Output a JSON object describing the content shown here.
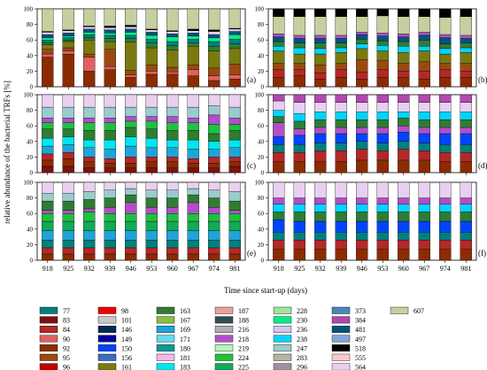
{
  "figure": {
    "ylabel": "relative abundance of the bacterial TRFs [%]",
    "xlabel": "Time since start-up (days)"
  },
  "legend": {
    "items": [
      {
        "label": "77",
        "color": "#007f7f"
      },
      {
        "label": "83",
        "color": "#7f1010"
      },
      {
        "label": "84",
        "color": "#b42828"
      },
      {
        "label": "90",
        "color": "#e06060"
      },
      {
        "label": "92",
        "color": "#8b2c00"
      },
      {
        "label": "95",
        "color": "#9a4a10"
      },
      {
        "label": "96",
        "color": "#c00000"
      },
      {
        "label": "98",
        "color": "#f00000"
      },
      {
        "label": "101",
        "color": "#c8c8c8"
      },
      {
        "label": "146",
        "color": "#002a55"
      },
      {
        "label": "149",
        "color": "#0000a0"
      },
      {
        "label": "150",
        "color": "#0044ff"
      },
      {
        "label": "156",
        "color": "#3e6cc4"
      },
      {
        "label": "161",
        "color": "#7a7a10"
      },
      {
        "label": "163",
        "color": "#2e7d32"
      },
      {
        "label": "167",
        "color": "#8bbf3f"
      },
      {
        "label": "169",
        "color": "#1fa4d8"
      },
      {
        "label": "171",
        "color": "#66d9f0"
      },
      {
        "label": "180",
        "color": "#0a9a96"
      },
      {
        "label": "181",
        "color": "#f0b8f0"
      },
      {
        "label": "183",
        "color": "#00e5ee"
      },
      {
        "label": "187",
        "color": "#e8a0a0"
      },
      {
        "label": "188",
        "color": "#2f4f4f"
      },
      {
        "label": "216",
        "color": "#b0b0b0"
      },
      {
        "label": "218",
        "color": "#b04fc8"
      },
      {
        "label": "219",
        "color": "#b8f5c0"
      },
      {
        "label": "224",
        "color": "#20c040"
      },
      {
        "label": "225",
        "color": "#11aa55"
      },
      {
        "label": "228",
        "color": "#9fe49f"
      },
      {
        "label": "230",
        "color": "#00ee88"
      },
      {
        "label": "236",
        "color": "#d0c8ee"
      },
      {
        "label": "238",
        "color": "#00d5ff"
      },
      {
        "label": "247",
        "color": "#99cccc"
      },
      {
        "label": "283",
        "color": "#b5b5a0"
      },
      {
        "label": "296",
        "color": "#a090a0"
      },
      {
        "label": "373",
        "color": "#4a88b8"
      },
      {
        "label": "384",
        "color": "#b048b0"
      },
      {
        "label": "481",
        "color": "#005580"
      },
      {
        "label": "497",
        "color": "#7fa6d8"
      },
      {
        "label": "518",
        "color": "#000000"
      },
      {
        "label": "555",
        "color": "#ffc8c8"
      },
      {
        "label": "564",
        "color": "#e8d0f0"
      },
      {
        "label": "607",
        "color": "#c5cf9f"
      }
    ]
  },
  "chart_data": [
    {
      "type": "bar",
      "stacked": true,
      "panel_label": "(a)",
      "categories": [
        "918",
        "925",
        "932",
        "939",
        "946",
        "953",
        "960",
        "967",
        "974",
        "981"
      ],
      "y_ticks": [
        "0",
        "20",
        "40",
        "60",
        "80",
        "100"
      ],
      "ylim": [
        0,
        100
      ],
      "series": [
        {
          "name": "92",
          "values": [
            38,
            42,
            20,
            22,
            12,
            16,
            16,
            14,
            8,
            10
          ]
        },
        {
          "name": "90",
          "values": [
            4,
            4,
            18,
            4,
            3,
            4,
            3,
            8,
            6,
            5
          ]
        },
        {
          "name": "95",
          "values": [
            6,
            4,
            4,
            22,
            6,
            8,
            6,
            6,
            10,
            14
          ]
        },
        {
          "name": "161",
          "values": [
            6,
            8,
            18,
            10,
            36,
            22,
            22,
            24,
            22,
            20
          ]
        },
        {
          "name": "163",
          "values": [
            2,
            2,
            3,
            4,
            5,
            6,
            6,
            4,
            6,
            6
          ]
        },
        {
          "name": "77",
          "values": [
            4,
            3,
            4,
            4,
            4,
            5,
            5,
            5,
            6,
            6
          ]
        },
        {
          "name": "230",
          "values": [
            3,
            2,
            3,
            3,
            4,
            5,
            6,
            4,
            5,
            6
          ]
        },
        {
          "name": "481",
          "values": [
            4,
            4,
            4,
            4,
            4,
            4,
            4,
            4,
            4,
            4
          ]
        },
        {
          "name": "564",
          "values": [
            3,
            3,
            3,
            3,
            3,
            3,
            3,
            3,
            4,
            3
          ]
        },
        {
          "name": "518",
          "values": [
            1,
            1,
            1,
            2,
            2,
            1,
            1,
            2,
            2,
            1
          ]
        },
        {
          "name": "607",
          "values": [
            29,
            27,
            22,
            22,
            21,
            26,
            28,
            26,
            27,
            25
          ]
        }
      ]
    },
    {
      "type": "bar",
      "stacked": true,
      "panel_label": "(b)",
      "categories": [
        "918",
        "925",
        "932",
        "939",
        "946",
        "953",
        "960",
        "967",
        "974",
        "981"
      ],
      "y_ticks": [
        "0",
        "20",
        "40",
        "60",
        "80",
        "100"
      ],
      "ylim": [
        0,
        100
      ],
      "series": [
        {
          "name": "92",
          "values": [
            12,
            14,
            10,
            12,
            10,
            12,
            12,
            10,
            12,
            12
          ]
        },
        {
          "name": "84",
          "values": [
            10,
            8,
            8,
            10,
            9,
            10,
            8,
            10,
            10,
            8
          ]
        },
        {
          "name": "95",
          "values": [
            8,
            8,
            10,
            8,
            16,
            12,
            10,
            12,
            8,
            10
          ]
        },
        {
          "name": "161",
          "values": [
            16,
            12,
            14,
            14,
            14,
            12,
            14,
            14,
            12,
            14
          ]
        },
        {
          "name": "238",
          "values": [
            6,
            8,
            7,
            6,
            6,
            7,
            8,
            6,
            7,
            6
          ]
        },
        {
          "name": "163",
          "values": [
            6,
            6,
            7,
            6,
            6,
            6,
            6,
            8,
            6,
            6
          ]
        },
        {
          "name": "481",
          "values": [
            6,
            6,
            6,
            6,
            6,
            6,
            6,
            6,
            8,
            6
          ]
        },
        {
          "name": "218",
          "values": [
            4,
            4,
            4,
            4,
            3,
            4,
            4,
            4,
            4,
            4
          ]
        },
        {
          "name": "607",
          "values": [
            22,
            24,
            24,
            24,
            20,
            22,
            22,
            20,
            22,
            24
          ]
        },
        {
          "name": "518",
          "values": [
            10,
            10,
            10,
            10,
            10,
            9,
            10,
            10,
            11,
            10
          ]
        }
      ]
    },
    {
      "type": "bar",
      "stacked": true,
      "panel_label": "(c)",
      "categories": [
        "918",
        "925",
        "932",
        "939",
        "946",
        "953",
        "960",
        "967",
        "974",
        "981"
      ],
      "y_ticks": [
        "0",
        "20",
        "40",
        "60",
        "80",
        "100"
      ],
      "ylim": [
        0,
        100
      ],
      "series": [
        {
          "name": "83",
          "values": [
            8,
            8,
            6,
            6,
            6,
            6,
            6,
            6,
            6,
            8
          ]
        },
        {
          "name": "92",
          "values": [
            8,
            10,
            8,
            6,
            6,
            8,
            8,
            6,
            6,
            6
          ]
        },
        {
          "name": "84",
          "values": [
            8,
            8,
            6,
            6,
            8,
            6,
            6,
            6,
            8,
            6
          ]
        },
        {
          "name": "169",
          "values": [
            10,
            10,
            12,
            12,
            14,
            12,
            12,
            12,
            10,
            12
          ]
        },
        {
          "name": "183",
          "values": [
            10,
            10,
            10,
            12,
            12,
            12,
            10,
            12,
            10,
            10
          ]
        },
        {
          "name": "163",
          "values": [
            12,
            10,
            12,
            12,
            12,
            12,
            12,
            12,
            10,
            12
          ]
        },
        {
          "name": "224",
          "values": [
            8,
            8,
            10,
            10,
            8,
            10,
            10,
            10,
            12,
            8
          ]
        },
        {
          "name": "218",
          "values": [
            6,
            6,
            6,
            6,
            6,
            6,
            8,
            6,
            12,
            8
          ]
        },
        {
          "name": "247",
          "values": [
            14,
            14,
            14,
            14,
            12,
            12,
            12,
            14,
            12,
            14
          ]
        },
        {
          "name": "564",
          "values": [
            16,
            16,
            16,
            16,
            16,
            16,
            16,
            16,
            14,
            16
          ]
        }
      ]
    },
    {
      "type": "bar",
      "stacked": true,
      "panel_label": "(d)",
      "categories": [
        "918",
        "925",
        "932",
        "939",
        "946",
        "953",
        "960",
        "967",
        "974",
        "981"
      ],
      "y_ticks": [
        "0",
        "20",
        "40",
        "60",
        "80",
        "100"
      ],
      "ylim": [
        0,
        100
      ],
      "series": [
        {
          "name": "92",
          "values": [
            14,
            14,
            14,
            14,
            16,
            16,
            16,
            16,
            14,
            14
          ]
        },
        {
          "name": "84",
          "values": [
            12,
            12,
            14,
            14,
            14,
            12,
            14,
            12,
            12,
            12
          ]
        },
        {
          "name": "77",
          "values": [
            10,
            10,
            10,
            10,
            10,
            10,
            10,
            10,
            10,
            10
          ]
        },
        {
          "name": "150",
          "values": [
            10,
            12,
            12,
            12,
            10,
            12,
            12,
            12,
            14,
            14
          ]
        },
        {
          "name": "218",
          "values": [
            18,
            8,
            8,
            8,
            8,
            8,
            8,
            8,
            8,
            8
          ]
        },
        {
          "name": "163",
          "values": [
            8,
            10,
            10,
            10,
            10,
            10,
            10,
            10,
            10,
            10
          ]
        },
        {
          "name": "238",
          "values": [
            8,
            10,
            10,
            10,
            10,
            10,
            8,
            10,
            10,
            10
          ]
        },
        {
          "name": "564",
          "values": [
            12,
            14,
            12,
            12,
            12,
            12,
            12,
            12,
            12,
            12
          ]
        },
        {
          "name": "384",
          "values": [
            8,
            10,
            10,
            10,
            10,
            10,
            10,
            10,
            10,
            10
          ]
        }
      ]
    },
    {
      "type": "bar",
      "stacked": true,
      "panel_label": "(e)",
      "categories": [
        "918",
        "925",
        "932",
        "939",
        "946",
        "953",
        "960",
        "967",
        "974",
        "981"
      ],
      "y_ticks": [
        "0",
        "20",
        "40",
        "60",
        "80",
        "100"
      ],
      "ylim": [
        0,
        100
      ],
      "series": [
        {
          "name": "92",
          "values": [
            8,
            8,
            8,
            8,
            8,
            8,
            8,
            8,
            8,
            8
          ]
        },
        {
          "name": "84",
          "values": [
            8,
            8,
            8,
            8,
            8,
            8,
            8,
            8,
            8,
            8
          ]
        },
        {
          "name": "77",
          "values": [
            10,
            10,
            10,
            10,
            10,
            10,
            10,
            10,
            10,
            10
          ]
        },
        {
          "name": "169",
          "values": [
            12,
            12,
            12,
            12,
            12,
            12,
            12,
            12,
            12,
            12
          ]
        },
        {
          "name": "225",
          "values": [
            12,
            12,
            12,
            12,
            12,
            12,
            12,
            12,
            12,
            12
          ]
        },
        {
          "name": "224",
          "values": [
            10,
            10,
            12,
            10,
            10,
            10,
            10,
            10,
            10,
            10
          ]
        },
        {
          "name": "218",
          "values": [
            4,
            4,
            4,
            8,
            14,
            8,
            8,
            14,
            8,
            4
          ]
        },
        {
          "name": "163",
          "values": [
            12,
            12,
            12,
            12,
            10,
            12,
            12,
            10,
            12,
            12
          ]
        },
        {
          "name": "247",
          "values": [
            10,
            10,
            10,
            10,
            8,
            10,
            10,
            8,
            10,
            12
          ]
        },
        {
          "name": "564",
          "values": [
            14,
            14,
            12,
            10,
            8,
            10,
            10,
            8,
            10,
            12
          ]
        }
      ]
    },
    {
      "type": "bar",
      "stacked": true,
      "panel_label": "(f)",
      "categories": [
        "918",
        "925",
        "932",
        "939",
        "946",
        "953",
        "960",
        "967",
        "974",
        "981"
      ],
      "y_ticks": [
        "0",
        "20",
        "40",
        "60",
        "80",
        "100"
      ],
      "ylim": [
        0,
        100
      ],
      "series": [
        {
          "name": "92",
          "values": [
            14,
            14,
            14,
            14,
            14,
            14,
            14,
            14,
            14,
            14
          ]
        },
        {
          "name": "84",
          "values": [
            12,
            12,
            12,
            12,
            12,
            12,
            12,
            12,
            12,
            12
          ]
        },
        {
          "name": "77",
          "values": [
            10,
            10,
            10,
            10,
            10,
            10,
            10,
            10,
            10,
            10
          ]
        },
        {
          "name": "150",
          "values": [
            16,
            14,
            14,
            14,
            14,
            14,
            14,
            14,
            14,
            14
          ]
        },
        {
          "name": "163",
          "values": [
            10,
            12,
            12,
            12,
            12,
            12,
            12,
            12,
            12,
            12
          ]
        },
        {
          "name": "238",
          "values": [
            10,
            10,
            10,
            10,
            10,
            10,
            10,
            10,
            10,
            10
          ]
        },
        {
          "name": "218",
          "values": [
            8,
            8,
            8,
            8,
            8,
            8,
            8,
            8,
            8,
            8
          ]
        },
        {
          "name": "564",
          "values": [
            20,
            20,
            20,
            20,
            20,
            20,
            20,
            20,
            20,
            20
          ]
        }
      ]
    }
  ]
}
